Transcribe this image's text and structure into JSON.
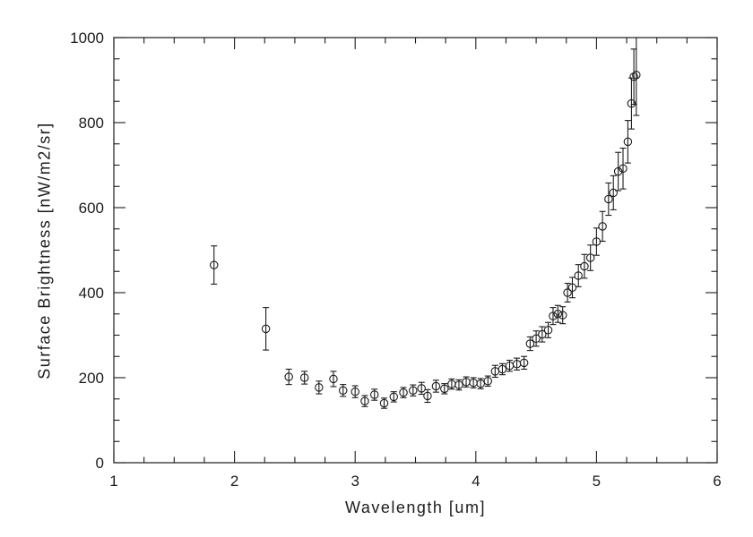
{
  "chart_data": {
    "type": "scatter",
    "title": "",
    "xlabel": "Wavelength [um]",
    "ylabel": "Surface Brightness [nW/m2/sr]",
    "xlim": [
      1,
      6
    ],
    "ylim": [
      0,
      1000
    ],
    "xticks": [
      1,
      2,
      3,
      4,
      5,
      6
    ],
    "yticks": [
      0,
      200,
      400,
      600,
      800,
      1000
    ],
    "x_minor_step": 0.25,
    "y_minor_step": 50,
    "marker": "open-circle",
    "error_bars": true,
    "ink_color": "#1c1c1c",
    "points": [
      [
        1.83,
        465,
        45
      ],
      [
        2.26,
        315,
        50
      ],
      [
        2.45,
        202,
        18
      ],
      [
        2.58,
        200,
        15
      ],
      [
        2.7,
        177,
        15
      ],
      [
        2.82,
        197,
        18
      ],
      [
        2.9,
        170,
        14
      ],
      [
        3.0,
        167,
        14
      ],
      [
        3.08,
        145,
        13
      ],
      [
        3.16,
        160,
        13
      ],
      [
        3.24,
        140,
        12
      ],
      [
        3.32,
        155,
        12
      ],
      [
        3.4,
        165,
        12
      ],
      [
        3.48,
        170,
        13
      ],
      [
        3.55,
        175,
        14
      ],
      [
        3.6,
        157,
        15
      ],
      [
        3.67,
        180,
        14
      ],
      [
        3.74,
        174,
        12
      ],
      [
        3.8,
        185,
        12
      ],
      [
        3.86,
        183,
        12
      ],
      [
        3.92,
        190,
        12
      ],
      [
        3.98,
        188,
        12
      ],
      [
        4.04,
        186,
        12
      ],
      [
        4.1,
        192,
        12
      ],
      [
        4.16,
        215,
        14
      ],
      [
        4.22,
        220,
        13
      ],
      [
        4.28,
        228,
        13
      ],
      [
        4.34,
        232,
        14
      ],
      [
        4.4,
        235,
        15
      ],
      [
        4.45,
        280,
        16
      ],
      [
        4.5,
        292,
        18
      ],
      [
        4.55,
        302,
        18
      ],
      [
        4.6,
        312,
        18
      ],
      [
        4.64,
        345,
        20
      ],
      [
        4.68,
        350,
        20
      ],
      [
        4.72,
        347,
        20
      ],
      [
        4.76,
        400,
        22
      ],
      [
        4.8,
        412,
        24
      ],
      [
        4.85,
        440,
        26
      ],
      [
        4.9,
        462,
        28
      ],
      [
        4.95,
        482,
        30
      ],
      [
        5.0,
        520,
        32
      ],
      [
        5.05,
        556,
        35
      ],
      [
        5.1,
        620,
        38
      ],
      [
        5.14,
        635,
        40
      ],
      [
        5.18,
        685,
        45
      ],
      [
        5.22,
        692,
        48
      ],
      [
        5.26,
        755,
        50
      ],
      [
        5.29,
        845,
        60
      ],
      [
        5.31,
        908,
        65
      ],
      [
        5.33,
        912,
        95
      ]
    ]
  }
}
